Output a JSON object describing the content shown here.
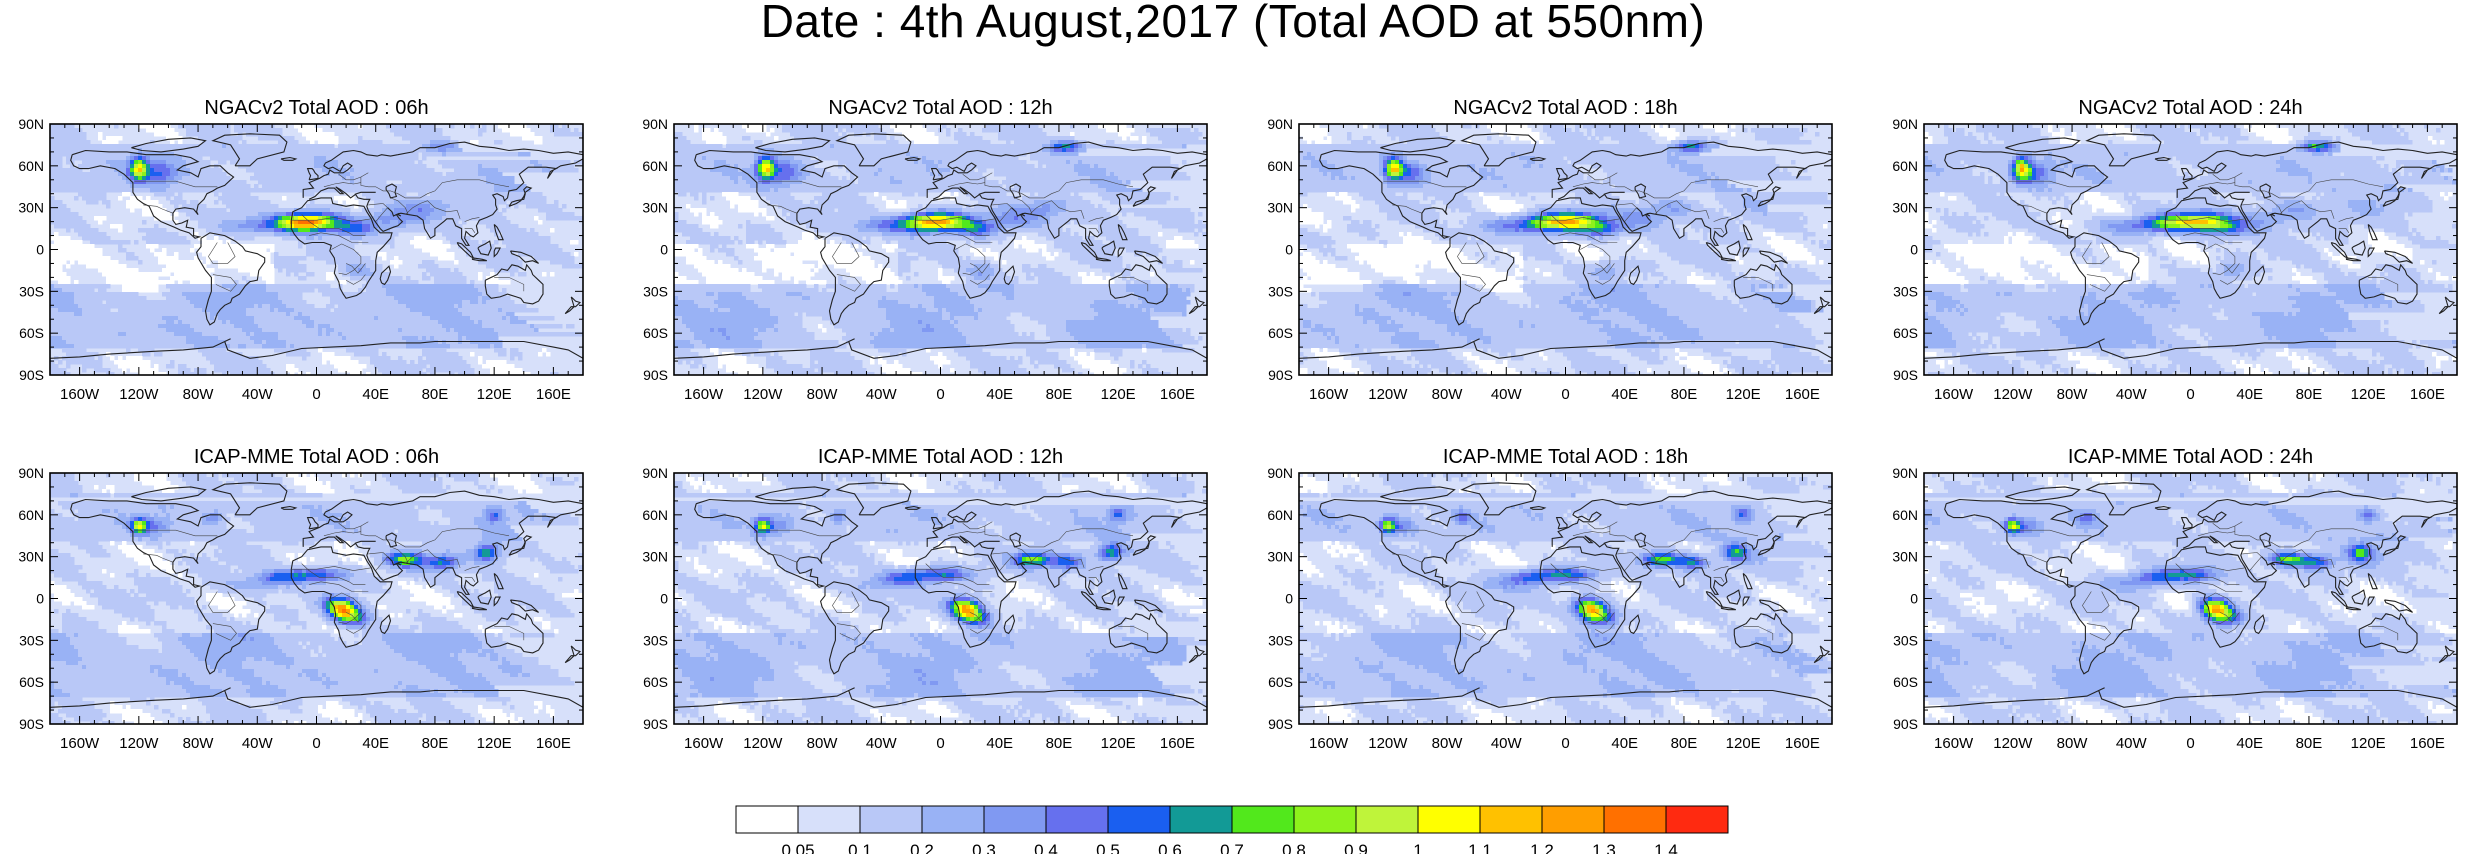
{
  "page": {
    "title": "Date : 4th August,2017 (Total AOD at 550nm)"
  },
  "panels": [
    {
      "title": "NGACv2 Total AOD : 06h",
      "model": "NGACv2",
      "hour": 6,
      "row": 0,
      "col": 0
    },
    {
      "title": "NGACv2 Total AOD : 12h",
      "model": "NGACv2",
      "hour": 12,
      "row": 0,
      "col": 1
    },
    {
      "title": "NGACv2 Total AOD : 18h",
      "model": "NGACv2",
      "hour": 18,
      "row": 0,
      "col": 2
    },
    {
      "title": "NGACv2 Total AOD : 24h",
      "model": "NGACv2",
      "hour": 24,
      "row": 0,
      "col": 3
    },
    {
      "title": "ICAP-MME Total AOD : 06h",
      "model": "ICAP-MME",
      "hour": 6,
      "row": 1,
      "col": 0
    },
    {
      "title": "ICAP-MME Total AOD : 12h",
      "model": "ICAP-MME",
      "hour": 12,
      "row": 1,
      "col": 1
    },
    {
      "title": "ICAP-MME Total AOD : 18h",
      "model": "ICAP-MME",
      "hour": 18,
      "row": 1,
      "col": 2
    },
    {
      "title": "ICAP-MME Total AOD : 24h",
      "model": "ICAP-MME",
      "hour": 24,
      "row": 1,
      "col": 3
    }
  ],
  "axes": {
    "lat_labels": [
      "90N",
      "60N",
      "30N",
      "0",
      "30S",
      "60S",
      "90S"
    ],
    "lon_labels": [
      "160W",
      "120W",
      "80W",
      "40W",
      "0",
      "40E",
      "80E",
      "120E",
      "160E"
    ]
  },
  "colorbar": {
    "colors": [
      "#ffffff",
      "#d7e0fa",
      "#b9c8f7",
      "#99b2f5",
      "#8099f2",
      "#6670ee",
      "#1a5ff0",
      "#129a96",
      "#52e81c",
      "#8ef21c",
      "#bff43a",
      "#ffff00",
      "#ffc100",
      "#ff9e00",
      "#ff7000",
      "#ff2a10"
    ],
    "labels": [
      "0.05",
      "0.1",
      "0.2",
      "0.3",
      "0.4",
      "0.5",
      "0.6",
      "0.7",
      "0.8",
      "0.9",
      "1",
      "1.1",
      "1.2",
      "1.3",
      "1.4"
    ]
  }
}
